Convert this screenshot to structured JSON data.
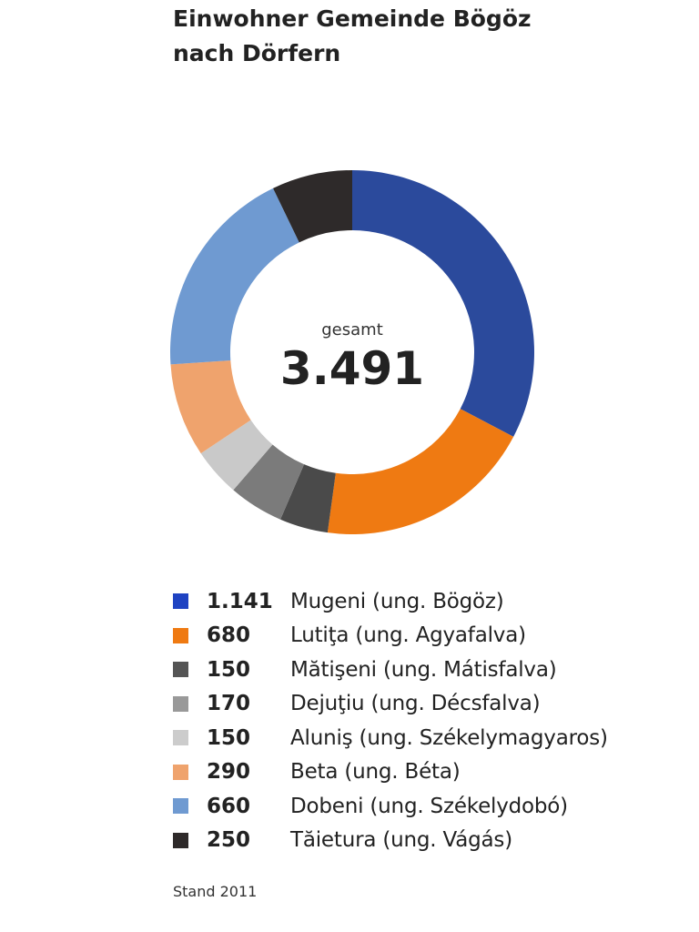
{
  "title_lines": [
    "Einwohner Gemeinde Bögöz",
    "nach Dörfern"
  ],
  "center": {
    "label": "gesamt",
    "value": "3.491"
  },
  "footnote": "Stand 2011",
  "chart_data": {
    "type": "pie",
    "variant": "donut",
    "title": "Einwohner Gemeinde Bögöz nach Dörfern",
    "total": 3491,
    "legend_position": "bottom",
    "series": [
      {
        "value": 1141,
        "value_label": "1.141",
        "name": "Mugeni (ung. Bögöz)",
        "color": "#2b4a9c",
        "swatch": "#1f43c2"
      },
      {
        "value": 680,
        "value_label": "680",
        "name": "Lutiţa (ung. Agyafalva)",
        "color": "#ef7a12",
        "swatch": "#ef7a12"
      },
      {
        "value": 150,
        "value_label": "150",
        "name": "Mătişeni (ung. Mátisfalva)",
        "color": "#4a4a4a",
        "swatch": "#555555"
      },
      {
        "value": 170,
        "value_label": "170",
        "name": "Dejuţiu (ung. Décsfalva)",
        "color": "#7b7b7b",
        "swatch": "#999999"
      },
      {
        "value": 150,
        "value_label": "150",
        "name": "Aluniş (ung. Székelymagyaros)",
        "color": "#c9c9c9",
        "swatch": "#cccccc"
      },
      {
        "value": 290,
        "value_label": "290",
        "name": "Beta (ung. Béta)",
        "color": "#efa36d",
        "swatch": "#efa36d"
      },
      {
        "value": 660,
        "value_label": "660",
        "name": "Dobeni (ung. Székelydobó)",
        "color": "#6f9ad1",
        "swatch": "#6f9ad1"
      },
      {
        "value": 250,
        "value_label": "250",
        "name": "Tăietura (ung. Vágás)",
        "color": "#2e2a2a",
        "swatch": "#2e2a2a"
      }
    ]
  }
}
